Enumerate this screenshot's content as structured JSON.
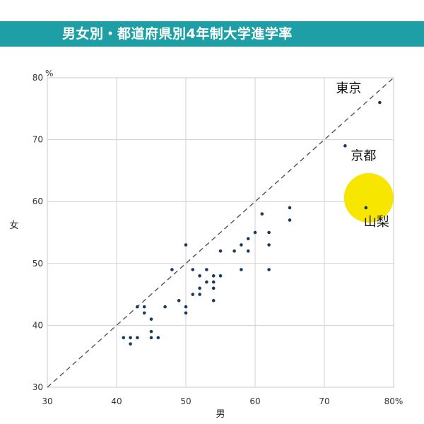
{
  "title": "男女別・都道府県別4年制大学進学率",
  "chart_data": {
    "type": "scatter",
    "title": "男女別・都道府県別4年制大学進学率",
    "xlabel": "男",
    "ylabel": "女",
    "xlim": [
      30,
      80
    ],
    "ylim": [
      30,
      80
    ],
    "x_ticks": [
      "30",
      "40",
      "50",
      "60",
      "70",
      "80%"
    ],
    "y_ticks": [
      "30",
      "40",
      "50",
      "60",
      "70",
      "80"
    ],
    "y_unit": "%",
    "grid": true,
    "reference_line": "y = x (dashed)",
    "highlight_color": "#f7e600",
    "point_color": "#1a3a5c",
    "points": [
      {
        "x": 41,
        "y": 38
      },
      {
        "x": 42,
        "y": 37
      },
      {
        "x": 42,
        "y": 38
      },
      {
        "x": 43,
        "y": 38
      },
      {
        "x": 43,
        "y": 43
      },
      {
        "x": 44,
        "y": 43
      },
      {
        "x": 44,
        "y": 42
      },
      {
        "x": 45,
        "y": 41
      },
      {
        "x": 45,
        "y": 39
      },
      {
        "x": 45,
        "y": 38
      },
      {
        "x": 46,
        "y": 38
      },
      {
        "x": 47,
        "y": 43
      },
      {
        "x": 48,
        "y": 49
      },
      {
        "x": 49,
        "y": 44
      },
      {
        "x": 50,
        "y": 53
      },
      {
        "x": 50,
        "y": 43
      },
      {
        "x": 50,
        "y": 42
      },
      {
        "x": 51,
        "y": 49
      },
      {
        "x": 51,
        "y": 45
      },
      {
        "x": 52,
        "y": 48
      },
      {
        "x": 52,
        "y": 46
      },
      {
        "x": 52,
        "y": 45
      },
      {
        "x": 53,
        "y": 49
      },
      {
        "x": 53,
        "y": 47
      },
      {
        "x": 54,
        "y": 48
      },
      {
        "x": 54,
        "y": 47
      },
      {
        "x": 54,
        "y": 46
      },
      {
        "x": 54,
        "y": 44
      },
      {
        "x": 55,
        "y": 52
      },
      {
        "x": 55,
        "y": 48
      },
      {
        "x": 57,
        "y": 52
      },
      {
        "x": 58,
        "y": 53
      },
      {
        "x": 58,
        "y": 49
      },
      {
        "x": 59,
        "y": 54
      },
      {
        "x": 59,
        "y": 52
      },
      {
        "x": 60,
        "y": 55
      },
      {
        "x": 61,
        "y": 58
      },
      {
        "x": 62,
        "y": 55
      },
      {
        "x": 62,
        "y": 53
      },
      {
        "x": 62,
        "y": 49
      },
      {
        "x": 65,
        "y": 59
      },
      {
        "x": 65,
        "y": 57
      },
      {
        "x": 73,
        "y": 69,
        "label": "京都"
      },
      {
        "x": 76,
        "y": 59,
        "label": "山梨",
        "highlight": true
      },
      {
        "x": 78,
        "y": 76,
        "label": "東京"
      }
    ]
  }
}
